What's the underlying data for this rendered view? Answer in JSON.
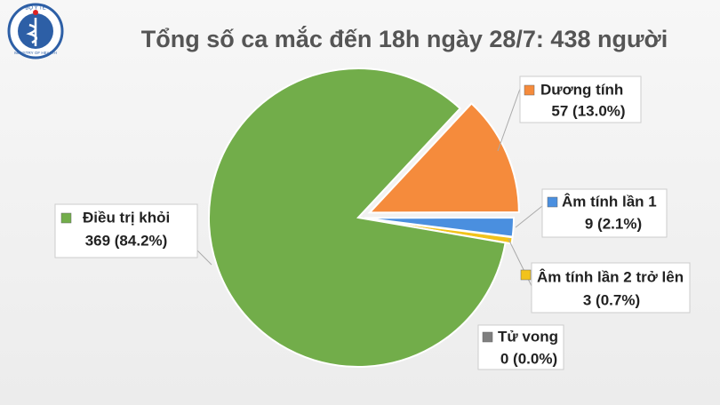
{
  "logo": {
    "top": "BỘ Y TẾ",
    "bottom": "MINISTRY OF HEALTH"
  },
  "chart_data": {
    "type": "pie",
    "title": "Tổng số ca mắc đến 18h ngày 28/7: 438 người",
    "categories": [
      "Dương tính",
      "Âm tính lần 1",
      "Âm tính lần 2 trở lên",
      "Tử vong",
      "Điều trị khỏi"
    ],
    "values": [
      57,
      9,
      3,
      0,
      369
    ],
    "value_labels": [
      "57 (13.0%)",
      "9 (2.1%)",
      "3 (0.7%)",
      "0 (0.0%)",
      "369 (84.2%)"
    ],
    "colors": [
      "#f58b3c",
      "#4a8fdf",
      "#f2c31b",
      "#7f7f7f",
      "#72ad4a"
    ]
  }
}
